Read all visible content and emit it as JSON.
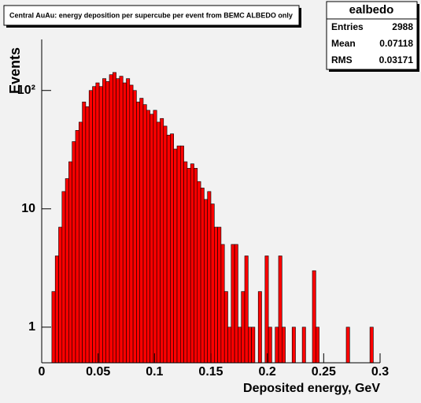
{
  "chart_data": {
    "type": "histogram",
    "title": "Central AuAu: energy deposition per supercube per event from BEMC ALBEDO only",
    "x_label": "Deposited energy, GeV",
    "y_label": "Events",
    "color": "#ff0000",
    "log_y": true,
    "xlim": [
      0,
      0.3
    ],
    "xticks": [
      0,
      0.05,
      0.1,
      0.15,
      0.2,
      0.25,
      0.3
    ],
    "ylim": [
      0.5,
      270
    ],
    "yticks": [
      1,
      10,
      {
        "value": 100,
        "label": "10²"
      }
    ],
    "bins": [
      0,
      0.003,
      0.006,
      0.009,
      0.012,
      0.015,
      0.018,
      0.021,
      0.024,
      0.027,
      0.03,
      0.033,
      0.036,
      0.039,
      0.042,
      0.045,
      0.048,
      0.051,
      0.054,
      0.057,
      0.06,
      0.063,
      0.066,
      0.069,
      0.072,
      0.075,
      0.078,
      0.081,
      0.084,
      0.087,
      0.09,
      0.093,
      0.096,
      0.099,
      0.102,
      0.105,
      0.108,
      0.111,
      0.114,
      0.117,
      0.12,
      0.123,
      0.126,
      0.129,
      0.132,
      0.135,
      0.138,
      0.141,
      0.144,
      0.147,
      0.15,
      0.153,
      0.156,
      0.159,
      0.162,
      0.165,
      0.168,
      0.171,
      0.174,
      0.177,
      0.18,
      0.183,
      0.186,
      0.189,
      0.192,
      0.195,
      0.198,
      0.201,
      0.204,
      0.207,
      0.21,
      0.213,
      0.216,
      0.219,
      0.222,
      0.225,
      0.228,
      0.231,
      0.234,
      0.237,
      0.24,
      0.243,
      0.246,
      0.249,
      0.252,
      0.255,
      0.258,
      0.261,
      0.264,
      0.267,
      0.27,
      0.273,
      0.276,
      0.279,
      0.282,
      0.285,
      0.288,
      0.291,
      0.294,
      0.297,
      0.3
    ],
    "values": [
      0,
      0,
      0,
      2,
      4,
      7,
      14,
      18,
      25,
      37,
      46,
      54,
      80,
      73,
      100,
      108,
      116,
      108,
      126,
      119,
      136,
      142,
      126,
      132,
      116,
      126,
      111,
      100,
      80,
      86,
      76,
      68,
      63,
      68,
      54,
      58,
      50,
      42,
      43,
      32,
      34,
      34,
      25,
      22,
      24,
      22,
      17,
      15,
      12,
      14,
      11,
      7,
      7,
      5,
      2,
      1,
      5,
      5,
      1,
      2,
      4,
      1,
      1,
      0,
      2,
      0,
      4,
      1,
      0,
      1,
      4,
      1,
      0,
      0,
      1,
      0,
      0,
      1,
      0,
      0,
      3,
      1,
      0,
      0,
      0,
      0,
      0,
      0,
      0,
      0,
      1,
      0,
      0,
      0,
      0,
      0,
      0,
      1,
      0,
      0
    ],
    "stats": {
      "name": "ealbedo",
      "rows": [
        {
          "label": "Entries",
          "value": 2988
        },
        {
          "label": "Mean",
          "value": 0.07118
        },
        {
          "label": "RMS",
          "value": 0.03171
        }
      ]
    }
  }
}
